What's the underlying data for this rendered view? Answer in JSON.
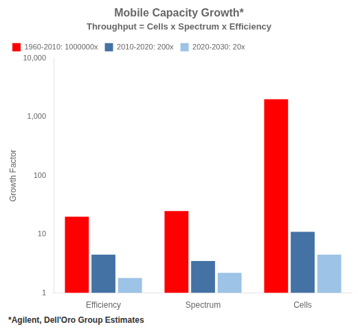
{
  "chart_data": {
    "type": "bar",
    "title": "Mobile Capacity Growth*",
    "subtitle": "Throughput = Cells x Spectrum x Efficiency",
    "y_label": "Growth Factor",
    "footnote": "*Agilent, Dell'Oro Group Estimates",
    "categories": [
      "Efficiency",
      "Spectrum",
      "Cells"
    ],
    "series": [
      {
        "name": "1960-2010: 1000000x",
        "color": "#FF0000",
        "values": [
          20,
          25,
          2000
        ]
      },
      {
        "name": "2010-2020: 200x",
        "color": "#4472A4",
        "values": [
          4.5,
          3.5,
          11
        ]
      },
      {
        "name": "2020-2030: 20x",
        "color": "#9DC3E6",
        "values": [
          1.8,
          2.2,
          4.5
        ]
      }
    ],
    "log": "y",
    "ylim": [
      1,
      10000
    ],
    "yticks": [
      1,
      10,
      100,
      {
        "value": 1000,
        "label": "1,000"
      },
      {
        "value": 10000,
        "label": "10,000"
      }
    ],
    "grid": false,
    "legend": "upper left"
  }
}
